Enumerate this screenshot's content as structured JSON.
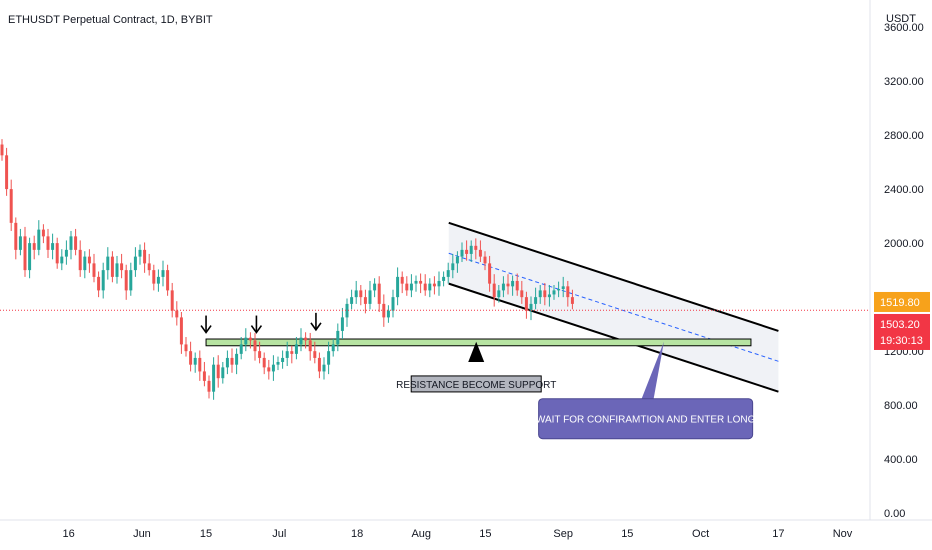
{
  "chart_data": {
    "type": "candlestick",
    "title": "ETHUSDT Perpetual Contract, 1D, BYBIT",
    "currency": "USDT",
    "y_ticks": [
      "3600.00",
      "3200.00",
      "2800.00",
      "2400.00",
      "2000.00",
      "1200.00",
      "800.00",
      "400.00",
      "0.00"
    ],
    "y_tick_values": [
      3600,
      3200,
      2800,
      2400,
      2000,
      1200,
      800,
      400,
      0
    ],
    "ylim": [
      -50,
      3800
    ],
    "x_ticks": [
      "16",
      "Jun",
      "15",
      "Jul",
      "18",
      "Aug",
      "15",
      "Sep",
      "15",
      "Oct",
      "17",
      "Nov"
    ],
    "x_tick_days": [
      0,
      16,
      30,
      46,
      63,
      77,
      91,
      108,
      122,
      138,
      155,
      169
    ],
    "day_range": [
      -15,
      175
    ],
    "up_color": "#26a69a",
    "down_color": "#ef5350",
    "close_series": [
      2650,
      2400,
      2150,
      1950,
      2050,
      1800,
      2000,
      1950,
      2100,
      2050,
      1950,
      2000,
      1850,
      1900,
      1950,
      2050,
      1950,
      1800,
      1900,
      1850,
      1750,
      1650,
      1800,
      1900,
      1750,
      1850,
      1800,
      1650,
      1800,
      1900,
      1950,
      1850,
      1800,
      1700,
      1750,
      1800,
      1650,
      1500,
      1450,
      1250,
      1200,
      1100,
      1150,
      1050,
      980,
      900,
      1100,
      1000,
      1080,
      1150,
      1100,
      1180,
      1250,
      1300,
      1280,
      1200,
      1150,
      1080,
      1050,
      1100,
      1120,
      1150,
      1200,
      1180,
      1250,
      1300,
      1280,
      1200,
      1150,
      1050,
      1100,
      1200,
      1250,
      1350,
      1450,
      1550,
      1600,
      1650,
      1600,
      1550,
      1650,
      1700,
      1550,
      1450,
      1500,
      1600,
      1750,
      1700,
      1650,
      1700,
      1720,
      1700,
      1650,
      1700,
      1680,
      1720,
      1750,
      1800,
      1850,
      1900,
      1950,
      1920,
      1980,
      1950,
      1900,
      1850,
      1700,
      1600,
      1650,
      1700,
      1680,
      1720,
      1650,
      1600,
      1500,
      1550,
      1600,
      1650,
      1600,
      1620,
      1650,
      1660,
      1680,
      1600,
      1550
    ],
    "current_price_tags": [
      {
        "value": 1519.8,
        "label": "1519.80",
        "color": "#f7a21b"
      },
      {
        "value": 1503.2,
        "label": "1503.20",
        "color": "#f23645"
      }
    ],
    "countdown_label": "19:30:13",
    "annotations": {
      "support_zone": {
        "day_start": 30,
        "day_end": 149,
        "price_low": 1240,
        "price_high": 1290,
        "fill": "#b7e4a2"
      },
      "arrows_down": [
        {
          "day": 30,
          "price": 1360
        },
        {
          "day": 41,
          "price": 1360
        },
        {
          "day": 54,
          "price": 1380
        }
      ],
      "arrow_up": {
        "day": 89,
        "price_tip": 1270,
        "price_base": 1120
      },
      "resistance_label": {
        "text": "RESISTANCE BECOME SUPPORT",
        "day": 89,
        "price": 950
      },
      "callout": {
        "text": "WAIT FOR CONFIRAMTION AND ENTER LONG",
        "day": 126,
        "price": 700,
        "fill": "#6b66b8",
        "pointer_day": 130,
        "pointer_price": 1270
      },
      "channel": {
        "upper": [
          [
            83,
            2150
          ],
          [
            155,
            1350
          ]
        ],
        "lower": [
          [
            83,
            1700
          ],
          [
            155,
            900
          ]
        ],
        "mid": [
          [
            83,
            1925
          ],
          [
            155,
            1125
          ]
        ],
        "fill": "#e6e9f0"
      }
    }
  }
}
